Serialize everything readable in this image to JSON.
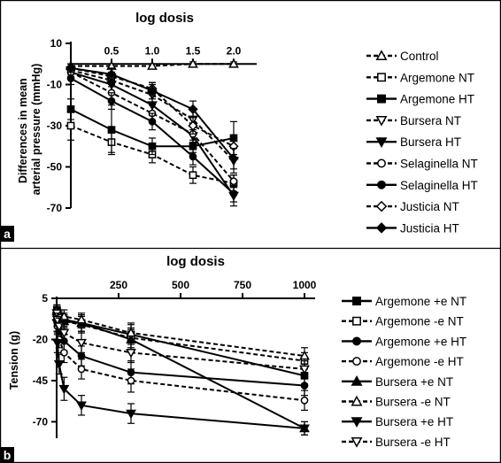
{
  "chart_data": [
    {
      "type": "line",
      "panel_label": "a",
      "title": "log dosis",
      "ylabel": "Differences in mean arterial pressure (mmHg)",
      "x_axis_position": "top",
      "xlim": [
        0,
        2.0
      ],
      "ylim": [
        -70,
        10
      ],
      "x_ticks": [
        "0.5",
        "1.0",
        "1.5",
        "2.0"
      ],
      "y_ticks": [
        "10",
        "-10",
        "-30",
        "-50",
        "-70"
      ],
      "legend_position": "right",
      "x": [
        0,
        0.5,
        1.0,
        1.5,
        2.0
      ],
      "series": [
        {
          "name": "Control",
          "marker": "triangle-up",
          "fill": "open",
          "dash": "dashed",
          "values": [
            -1,
            -1,
            -1,
            0,
            0
          ],
          "err": [
            1,
            1,
            1,
            1,
            1
          ]
        },
        {
          "name": "Argemone NT",
          "marker": "square",
          "fill": "open",
          "dash": "dashed",
          "values": [
            -30,
            -38,
            -44,
            -54,
            -58
          ],
          "err": [
            7,
            5,
            4,
            4,
            4
          ]
        },
        {
          "name": "Argemone HT",
          "marker": "square",
          "fill": "filled",
          "dash": "solid",
          "values": [
            -22,
            -32,
            -40,
            -40,
            -36
          ],
          "err": [
            5,
            12,
            4,
            3,
            8
          ]
        },
        {
          "name": "Bursera NT",
          "marker": "triangle-down",
          "fill": "open",
          "dash": "dashed",
          "values": [
            -3,
            -8,
            -15,
            -27,
            -47
          ],
          "err": [
            2,
            3,
            5,
            5,
            6
          ]
        },
        {
          "name": "Bursera HT",
          "marker": "triangle-down",
          "fill": "filled",
          "dash": "solid",
          "values": [
            -4,
            -10,
            -20,
            -35,
            -64
          ],
          "err": [
            2,
            4,
            5,
            6,
            5
          ]
        },
        {
          "name": "Selaginella NT",
          "marker": "circle",
          "fill": "open",
          "dash": "dashed",
          "values": [
            -4,
            -14,
            -24,
            -34,
            -57
          ],
          "err": [
            3,
            4,
            4,
            4,
            3
          ]
        },
        {
          "name": "Selaginella HT",
          "marker": "circle",
          "fill": "filled",
          "dash": "solid",
          "values": [
            -7,
            -18,
            -28,
            -45,
            -63
          ],
          "err": [
            3,
            4,
            4,
            4,
            4
          ]
        },
        {
          "name": "Justicia NT",
          "marker": "diamond",
          "fill": "open",
          "dash": "dashed",
          "values": [
            -2,
            -6,
            -12,
            -30,
            -40
          ],
          "err": [
            2,
            2,
            3,
            4,
            4
          ]
        },
        {
          "name": "Justicia HT",
          "marker": "diamond",
          "fill": "filled",
          "dash": "solid",
          "values": [
            -2,
            -5,
            -13,
            -22,
            -46
          ],
          "err": [
            2,
            3,
            4,
            4,
            5
          ]
        }
      ]
    },
    {
      "type": "line",
      "panel_label": "b",
      "title": "log dosis",
      "ylabel": "Tension (g)",
      "x_axis_position": "top",
      "xlim": [
        0,
        1000
      ],
      "ylim": [
        -80,
        5
      ],
      "x_ticks": [
        "250",
        "500",
        "750",
        "1000"
      ],
      "y_ticks": [
        "5",
        "-20",
        "-45",
        "-70"
      ],
      "legend_position": "right",
      "x": [
        1,
        3,
        10,
        30,
        100,
        300,
        1000
      ],
      "series": [
        {
          "name": "Argemone +e NT",
          "marker": "square",
          "fill": "filled",
          "dash": "solid",
          "values": [
            -2,
            -4,
            -6,
            -8,
            -10,
            -17,
            -42
          ],
          "err": [
            3,
            3,
            3,
            4,
            5,
            6,
            5
          ]
        },
        {
          "name": "Argemone -e NT",
          "marker": "square",
          "fill": "open",
          "dash": "dashed",
          "values": [
            -3,
            -5,
            -7,
            -9,
            -11,
            -19,
            -33
          ],
          "err": [
            3,
            3,
            3,
            4,
            5,
            6,
            5
          ]
        },
        {
          "name": "Argemone +e HT",
          "marker": "circle",
          "fill": "filled",
          "dash": "solid",
          "values": [
            -5,
            -10,
            -15,
            -21,
            -30,
            -40,
            -48
          ],
          "err": [
            4,
            5,
            5,
            6,
            6,
            7,
            6
          ]
        },
        {
          "name": "Argemone -e HT",
          "marker": "circle",
          "fill": "open",
          "dash": "dashed",
          "values": [
            -6,
            -12,
            -20,
            -28,
            -38,
            -45,
            -57
          ],
          "err": [
            4,
            5,
            5,
            6,
            6,
            7,
            6
          ]
        },
        {
          "name": "Bursera +e NT",
          "marker": "triangle-up",
          "fill": "filled",
          "dash": "solid",
          "values": [
            -3,
            -6,
            -8,
            -9,
            -10,
            -20,
            -74
          ],
          "err": [
            3,
            3,
            4,
            4,
            5,
            6,
            4
          ]
        },
        {
          "name": "Bursera -e NT",
          "marker": "triangle-up",
          "fill": "open",
          "dash": "dashed",
          "values": [
            -2,
            -4,
            -5,
            -6,
            -8,
            -16,
            -30
          ],
          "err": [
            3,
            3,
            3,
            4,
            4,
            6,
            5
          ]
        },
        {
          "name": "Bursera +e HT",
          "marker": "triangle-down",
          "fill": "filled",
          "dash": "solid",
          "values": [
            -10,
            -22,
            -35,
            -50,
            -60,
            -65,
            -74
          ],
          "err": [
            5,
            6,
            6,
            7,
            6,
            6,
            4
          ]
        },
        {
          "name": "Bursera -e HT",
          "marker": "triangle-down",
          "fill": "open",
          "dash": "dashed",
          "values": [
            -4,
            -8,
            -12,
            -16,
            -22,
            -28,
            -38
          ],
          "err": [
            4,
            4,
            5,
            5,
            6,
            6,
            5
          ]
        }
      ]
    }
  ]
}
